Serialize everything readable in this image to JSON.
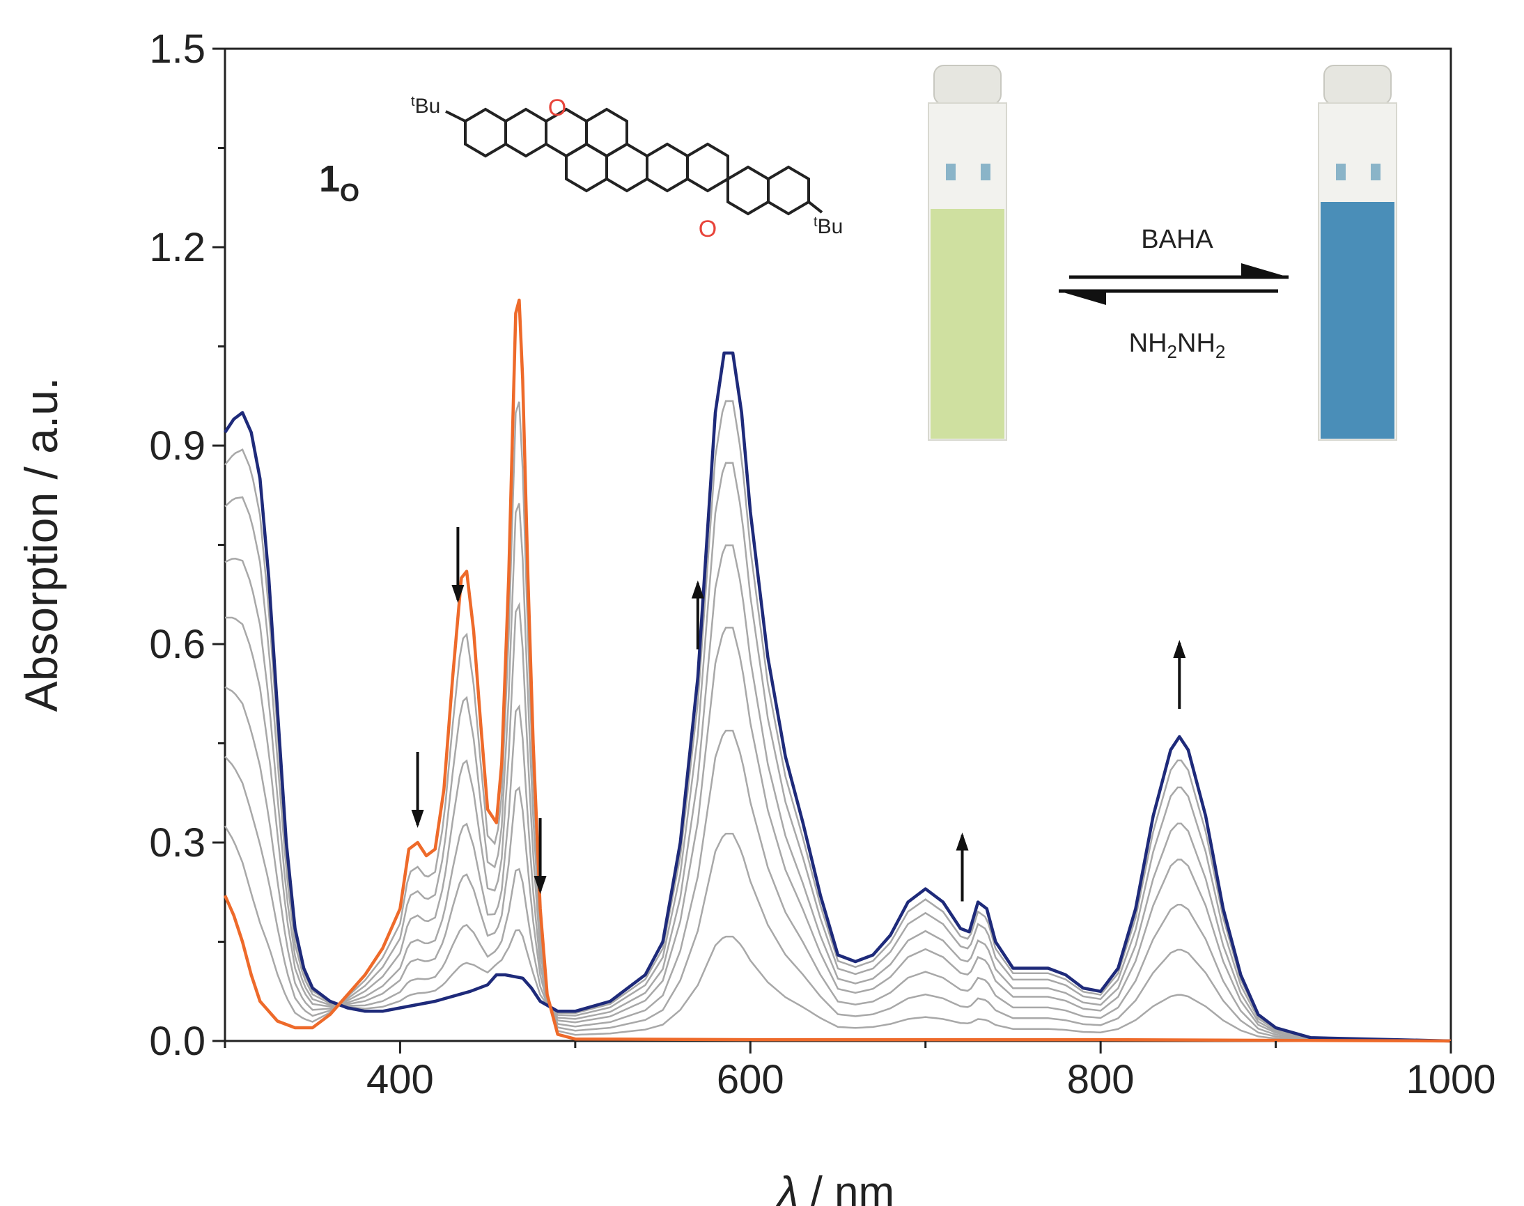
{
  "chart_data": {
    "type": "line",
    "xlabel_symbol": "λ",
    "xlabel_unit": " / nm",
    "ylabel": "Absorption / a.u.",
    "xlim": [
      300,
      1000
    ],
    "ylim": [
      0,
      1.5
    ],
    "xticks": [
      400,
      600,
      800,
      1000
    ],
    "yticks": [
      "0.0",
      "0.3",
      "0.6",
      "0.9",
      "1.2",
      "1.5"
    ],
    "compound_label": "1",
    "compound_subscript": "O",
    "series": [
      {
        "color": "#1e2a7a",
        "points": [
          [
            300,
            0.92
          ],
          [
            305,
            0.94
          ],
          [
            310,
            0.95
          ],
          [
            315,
            0.92
          ],
          [
            320,
            0.85
          ],
          [
            325,
            0.7
          ],
          [
            330,
            0.5
          ],
          [
            335,
            0.3
          ],
          [
            340,
            0.17
          ],
          [
            345,
            0.11
          ],
          [
            350,
            0.08
          ],
          [
            360,
            0.06
          ],
          [
            370,
            0.05
          ],
          [
            380,
            0.045
          ],
          [
            390,
            0.045
          ],
          [
            400,
            0.05
          ],
          [
            420,
            0.06
          ],
          [
            440,
            0.075
          ],
          [
            450,
            0.085
          ],
          [
            455,
            0.1
          ],
          [
            460,
            0.1
          ],
          [
            470,
            0.095
          ],
          [
            475,
            0.08
          ],
          [
            480,
            0.06
          ],
          [
            490,
            0.045
          ],
          [
            500,
            0.045
          ],
          [
            520,
            0.06
          ],
          [
            540,
            0.1
          ],
          [
            550,
            0.15
          ],
          [
            560,
            0.3
          ],
          [
            570,
            0.55
          ],
          [
            575,
            0.75
          ],
          [
            580,
            0.95
          ],
          [
            585,
            1.04
          ],
          [
            590,
            1.04
          ],
          [
            595,
            0.95
          ],
          [
            600,
            0.8
          ],
          [
            610,
            0.58
          ],
          [
            620,
            0.43
          ],
          [
            630,
            0.33
          ],
          [
            640,
            0.22
          ],
          [
            650,
            0.13
          ],
          [
            660,
            0.12
          ],
          [
            670,
            0.13
          ],
          [
            680,
            0.16
          ],
          [
            690,
            0.21
          ],
          [
            700,
            0.23
          ],
          [
            710,
            0.21
          ],
          [
            720,
            0.17
          ],
          [
            725,
            0.165
          ],
          [
            730,
            0.21
          ],
          [
            735,
            0.2
          ],
          [
            740,
            0.15
          ],
          [
            750,
            0.11
          ],
          [
            760,
            0.11
          ],
          [
            770,
            0.11
          ],
          [
            780,
            0.1
          ],
          [
            790,
            0.08
          ],
          [
            800,
            0.075
          ],
          [
            810,
            0.11
          ],
          [
            820,
            0.2
          ],
          [
            830,
            0.34
          ],
          [
            840,
            0.44
          ],
          [
            845,
            0.46
          ],
          [
            850,
            0.44
          ],
          [
            860,
            0.34
          ],
          [
            870,
            0.2
          ],
          [
            880,
            0.1
          ],
          [
            890,
            0.04
          ],
          [
            900,
            0.02
          ],
          [
            920,
            0.005
          ],
          [
            1000,
            0.0
          ]
        ]
      },
      {
        "color": "#ee6a2a",
        "points": [
          [
            300,
            0.22
          ],
          [
            305,
            0.19
          ],
          [
            310,
            0.15
          ],
          [
            315,
            0.1
          ],
          [
            320,
            0.06
          ],
          [
            330,
            0.03
          ],
          [
            340,
            0.02
          ],
          [
            350,
            0.02
          ],
          [
            360,
            0.04
          ],
          [
            370,
            0.07
          ],
          [
            380,
            0.1
          ],
          [
            390,
            0.14
          ],
          [
            400,
            0.2
          ],
          [
            405,
            0.29
          ],
          [
            410,
            0.3
          ],
          [
            415,
            0.28
          ],
          [
            420,
            0.29
          ],
          [
            425,
            0.38
          ],
          [
            430,
            0.55
          ],
          [
            435,
            0.7
          ],
          [
            438,
            0.71
          ],
          [
            442,
            0.62
          ],
          [
            446,
            0.48
          ],
          [
            450,
            0.35
          ],
          [
            455,
            0.33
          ],
          [
            458,
            0.42
          ],
          [
            462,
            0.7
          ],
          [
            466,
            1.1
          ],
          [
            468,
            1.12
          ],
          [
            470,
            1.0
          ],
          [
            473,
            0.7
          ],
          [
            476,
            0.45
          ],
          [
            480,
            0.2
          ],
          [
            484,
            0.07
          ],
          [
            490,
            0.01
          ],
          [
            500,
            0.003
          ],
          [
            600,
            0.002
          ],
          [
            800,
            0.002
          ],
          [
            1000,
            0.0
          ]
        ]
      }
    ],
    "intermediate_fractions": [
      0.15,
      0.3,
      0.45,
      0.6,
      0.72,
      0.84,
      0.93
    ],
    "intermediate_color": "#a8a8a8",
    "arrows": [
      {
        "x": 410,
        "direction": "down"
      },
      {
        "x": 433,
        "direction": "down"
      },
      {
        "x": 480,
        "direction": "down"
      },
      {
        "x": 570,
        "direction": "up"
      },
      {
        "x": 721,
        "direction": "up"
      },
      {
        "x": 845,
        "direction": "up"
      }
    ],
    "structure": {
      "tbu_label_sup": "t",
      "tbu_label_main": "Bu",
      "oxygen_label": "O",
      "oxygen_color": "#e8443a"
    },
    "inset": {
      "forward_reagent": "BAHA",
      "reverse_reagent_parts": [
        "NH",
        "2",
        "NH",
        "2"
      ],
      "left_solution_color": "#cfe0a0",
      "right_solution_color": "#4a8eb8"
    }
  }
}
